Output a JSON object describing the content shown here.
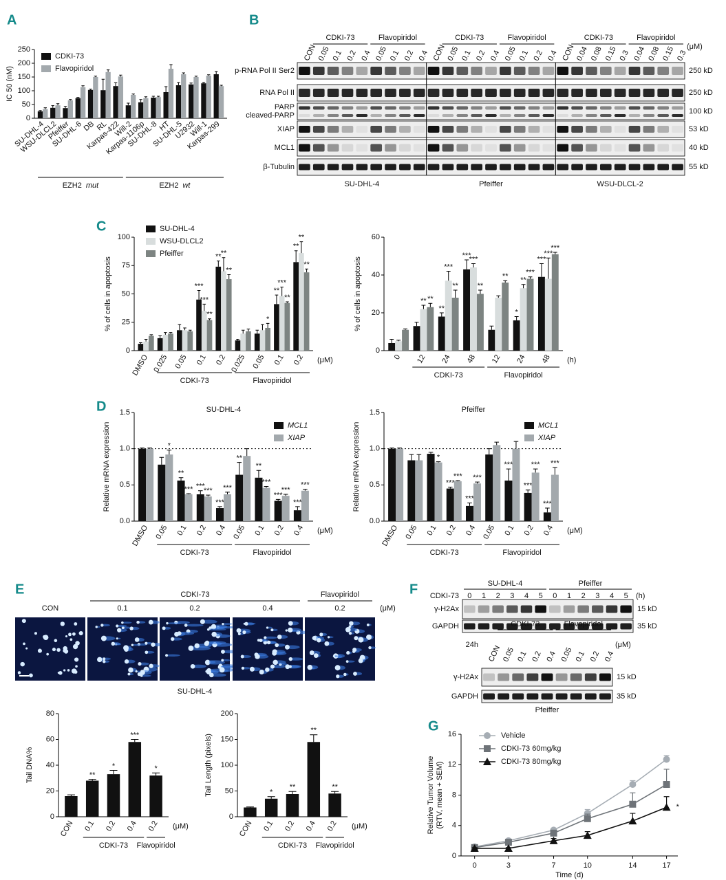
{
  "panel_labels": [
    "A",
    "B",
    "C",
    "D",
    "E",
    "F",
    "G"
  ],
  "chart_data": [
    {
      "type": "bar",
      "ylabel": "IC 50 (nM)",
      "categories": [
        "SU-DHL-4",
        "WSU-DLCL2",
        "Pfeiffer",
        "SU-DHL-6",
        "DB",
        "RL",
        "Karpas-422",
        "Will-2",
        "Karpas-1106p",
        "SU-DHL-8",
        "HT",
        "SU-DHL-5",
        "U2932",
        "Will-1",
        "Karpas-299"
      ],
      "series": [
        {
          "name": "CDKI-73",
          "color": "#111111",
          "values": [
            25,
            38,
            37,
            73,
            103,
            102,
            117,
            47,
            58,
            75,
            95,
            120,
            123,
            127,
            160
          ],
          "errors": [
            3,
            8,
            6,
            3,
            3,
            40,
            12,
            8,
            10,
            5,
            20,
            10,
            5,
            3,
            10
          ]
        },
        {
          "name": "Flavopiridol",
          "color": "#a3a9ad",
          "values": [
            33,
            47,
            65,
            113,
            150,
            168,
            152,
            85,
            73,
            77,
            180,
            160,
            150,
            155,
            117
          ],
          "errors": [
            5,
            6,
            3,
            5,
            3,
            8,
            5,
            3,
            5,
            3,
            15,
            5,
            3,
            3,
            3
          ]
        }
      ],
      "ylim": [
        0,
        250
      ],
      "yticks": [
        0,
        50,
        100,
        150,
        200,
        250
      ],
      "legend": "upper left",
      "groups": [
        {
          "label": "EZH2",
          "qualifier": "mut"
        },
        {
          "label": "EZH2",
          "qualifier": "wt"
        }
      ]
    },
    {
      "type": "bar",
      "ylabel": "% of cells in apoptosis",
      "categories": [
        "DMSO",
        "0.025",
        "0.05",
        "0.1",
        "0.2",
        "0.025",
        "0.05",
        "0.1",
        "0.2"
      ],
      "series": [
        {
          "name": "SU-DHL-4",
          "color": "#111111",
          "values": [
            6,
            11,
            18,
            45,
            74,
            9,
            15,
            41,
            78
          ],
          "errors": [
            1,
            2,
            5,
            8,
            5,
            1,
            3,
            8,
            10
          ],
          "stars": [
            null,
            null,
            null,
            "***",
            "**",
            null,
            null,
            "**",
            "**"
          ]
        },
        {
          "name": "WSU-DLCL2",
          "color": "#d8dddd",
          "values": [
            8,
            14,
            18,
            35,
            70,
            15,
            18,
            48,
            86
          ],
          "errors": [
            2,
            2,
            2,
            6,
            12,
            3,
            5,
            8,
            10
          ],
          "stars": [
            null,
            null,
            null,
            "***",
            "**",
            null,
            null,
            "***",
            "**"
          ]
        },
        {
          "name": "Pfeiffer",
          "color": "#7d8482",
          "values": [
            13,
            15,
            17,
            27,
            63,
            17,
            20,
            42,
            69
          ],
          "errors": [
            1,
            1,
            1,
            1,
            4,
            2,
            4,
            1,
            3
          ],
          "stars": [
            null,
            null,
            null,
            "**",
            "**",
            null,
            "*",
            "**",
            "**"
          ]
        }
      ],
      "ylim": [
        0,
        100
      ],
      "yticks": [
        0,
        25,
        50,
        75,
        100
      ],
      "legend": "upper left",
      "groups": [
        "CDKI-73",
        "Flavopiridol"
      ],
      "unit": "(μM)"
    },
    {
      "type": "bar",
      "ylabel": "% of cells in apoptosis",
      "categories": [
        "0",
        "12",
        "24",
        "48",
        "12",
        "24",
        "48"
      ],
      "series": [
        {
          "color": "#111111",
          "values": [
            4,
            13,
            18,
            43,
            11,
            16,
            39
          ],
          "errors": [
            2,
            2,
            2,
            5,
            2,
            2,
            7
          ],
          "stars": [
            null,
            null,
            "**",
            "***",
            null,
            "*",
            "***"
          ]
        },
        {
          "color": "#d8dddd",
          "values": [
            5,
            22,
            37,
            44,
            28,
            33,
            38
          ],
          "errors": [
            0.5,
            2,
            5,
            2,
            1,
            2,
            11
          ],
          "stars": [
            null,
            "**",
            "***",
            "***",
            null,
            "**",
            "***"
          ]
        },
        {
          "color": "#7d8482",
          "values": [
            11,
            23,
            28,
            30,
            36,
            38,
            51
          ],
          "errors": [
            0.5,
            2,
            4,
            2,
            1,
            1,
            1
          ],
          "stars": [
            null,
            "**",
            "**",
            "**",
            "**",
            "***",
            "***"
          ]
        }
      ],
      "ylim": [
        0,
        60
      ],
      "yticks": [
        0,
        20,
        40,
        60
      ],
      "groups": [
        "CDKI-73",
        "Flavopiridol"
      ],
      "unit": "(h)"
    },
    {
      "type": "bar",
      "title": "SU-DHL-4",
      "ylabel": "Relative mRNA expression",
      "categories": [
        "DMSO",
        "0.05",
        "0.1",
        "0.2",
        "0.4",
        "0.05",
        "0.1",
        "0.2",
        "0.4"
      ],
      "series": [
        {
          "name": "MCL1",
          "color": "#111111",
          "values": [
            1.0,
            0.78,
            0.56,
            0.37,
            0.18,
            0.64,
            0.6,
            0.28,
            0.15
          ],
          "errors": [
            0.01,
            0.1,
            0.04,
            0.05,
            0.02,
            0.17,
            0.1,
            0.02,
            0.05
          ],
          "stars": [
            null,
            null,
            "**",
            "***",
            "***",
            "**",
            "**",
            "***",
            "***"
          ]
        },
        {
          "name": "XIAP",
          "color": "#a3a9ad",
          "values": [
            1.0,
            0.92,
            0.37,
            0.34,
            0.37,
            0.9,
            0.46,
            0.35,
            0.42
          ],
          "errors": [
            0.01,
            0.06,
            0.01,
            0.02,
            0.03,
            0.1,
            0.02,
            0.02,
            0.02
          ],
          "stars": [
            null,
            "*",
            "***",
            "***",
            "***",
            null,
            "***",
            "***",
            "***"
          ]
        }
      ],
      "ylim": [
        0,
        1.5
      ],
      "yticks": [
        {
          "value": 0,
          "label": "0.0"
        },
        0.5,
        {
          "value": 1,
          "label": "1.0"
        },
        1.5
      ],
      "reference": 1,
      "legend": "upper right",
      "groups": [
        "CDKI-73",
        "Flavopiridol"
      ],
      "unit": "(μM)"
    },
    {
      "type": "bar",
      "title": "Pfeiffer",
      "ylabel": "Relative mRNA expression",
      "categories": [
        "DMSO",
        "0.05",
        "0.1",
        "0.2",
        "0.4",
        "0.05",
        "0.1",
        "0.2",
        "0.4"
      ],
      "series": [
        {
          "name": "MCL1",
          "color": "#111111",
          "values": [
            1.0,
            0.84,
            0.93,
            0.45,
            0.21,
            0.92,
            0.56,
            0.39,
            0.12
          ],
          "errors": [
            0.01,
            0.08,
            0.02,
            0.02,
            0.04,
            0.08,
            0.16,
            0.04,
            0.06
          ],
          "stars": [
            null,
            null,
            null,
            "***",
            "***",
            null,
            "***",
            "***",
            "***"
          ]
        },
        {
          "name": "XIAP",
          "color": "#a3a9ad",
          "values": [
            1.0,
            0.84,
            0.81,
            0.55,
            0.52,
            1.05,
            1.0,
            0.67,
            0.64
          ],
          "errors": [
            0.01,
            0.08,
            0.01,
            0.01,
            0.02,
            0.04,
            0.1,
            0.05,
            0.1
          ],
          "stars": [
            null,
            null,
            "*",
            "***",
            "***",
            null,
            null,
            "***",
            "***"
          ]
        }
      ],
      "ylim": [
        0,
        1.5
      ],
      "yticks": [
        {
          "value": 0,
          "label": "0.0"
        },
        0.5,
        {
          "value": 1,
          "label": "1.0"
        },
        1.5
      ],
      "reference": 1,
      "legend": "upper right",
      "groups": [
        "CDKI-73",
        "Flavopiridol"
      ],
      "unit": "(μM)"
    },
    {
      "type": "bar",
      "ylabel": "Tail DNA%",
      "categories": [
        "CON",
        "0.1",
        "0.2",
        "0.4",
        "0.2"
      ],
      "series": [
        {
          "color": "#111111",
          "values": [
            16,
            28,
            33,
            58,
            32
          ],
          "errors": [
            1,
            1,
            3,
            2,
            2
          ],
          "stars": [
            null,
            "**",
            "*",
            "***",
            "*"
          ]
        }
      ],
      "ylim": [
        0,
        80
      ],
      "yticks": [
        0,
        20,
        40,
        60,
        80
      ],
      "groups": [
        "CDKI-73",
        "Flavopiridol"
      ],
      "unit": "(μM)"
    },
    {
      "type": "bar",
      "ylabel": "Tail Length (pixels)",
      "categories": [
        "CON",
        "0.1",
        "0.2",
        "0.4",
        "0.2"
      ],
      "series": [
        {
          "color": "#111111",
          "values": [
            18,
            35,
            44,
            145,
            45
          ],
          "errors": [
            1,
            4,
            5,
            14,
            4
          ],
          "stars": [
            null,
            "*",
            "**",
            "**",
            "**"
          ]
        }
      ],
      "ylim": [
        0,
        200
      ],
      "yticks": [
        0,
        50,
        100,
        150,
        200
      ],
      "groups": [
        "CDKI-73",
        "Flavopiridol"
      ],
      "unit": "(μM)"
    },
    {
      "type": "line",
      "xlabel": "Time (d)",
      "ylabel": [
        "Relative Tumor Volume",
        "(RTV, mean + SEM)"
      ],
      "x": [
        0,
        3,
        7,
        10,
        14,
        17
      ],
      "xlim": [
        -1.2,
        18
      ],
      "xticks": [
        0,
        3,
        7,
        10,
        14,
        17
      ],
      "ylim": [
        0,
        16
      ],
      "yticks": [
        0,
        4,
        8,
        12,
        16
      ],
      "legend": "upper left",
      "series": [
        {
          "name": "Vehicle",
          "color": "#a6adb4",
          "marker": "circle",
          "values": [
            1.2,
            2.0,
            3.4,
            5.6,
            9.4,
            12.7
          ],
          "errors": [
            0.1,
            0.2,
            0.2,
            0.5,
            0.5,
            0.5
          ]
        },
        {
          "name": "CDKI-73 60mg/kg",
          "color": "#6e7378",
          "marker": "square",
          "values": [
            1.1,
            1.8,
            3.0,
            4.9,
            6.8,
            9.4
          ],
          "errors": [
            0.1,
            0.2,
            0.3,
            0.6,
            1.5,
            2.0
          ]
        },
        {
          "name": "CDKI-73 80mg/kg",
          "color": "#111111",
          "marker": "triangle",
          "values": [
            1.0,
            1.0,
            2.0,
            2.7,
            4.6,
            6.4
          ],
          "errors": [
            0.1,
            0.1,
            0.3,
            0.5,
            1.0,
            1.4
          ]
        }
      ],
      "annotation": "*"
    }
  ],
  "panel_B": {
    "unit": "(μM)",
    "sections": [
      {
        "cell_line": "SU-DHL-4",
        "lanes": [
          "CON",
          "0.05",
          "0.1",
          "0.2",
          "0.4",
          "0.05",
          "0.1",
          "0.2",
          "0.4"
        ],
        "drugs": [
          "CDKI-73",
          "Flavopiridol"
        ]
      },
      {
        "cell_line": "Pfeiffer",
        "lanes": [
          "CON",
          "0.05",
          "0.1",
          "0.2",
          "0.4",
          "0.05",
          "0.1",
          "0.2",
          "0.4"
        ],
        "drugs": [
          "CDKI-73",
          "Flavopiridol"
        ]
      },
      {
        "cell_line": "WSU-DLCL-2",
        "lanes": [
          "CON",
          "0.04",
          "0.08",
          "0.15",
          "0.3",
          "0.04",
          "0.08",
          "0.15",
          "0.3"
        ],
        "drugs": [
          "CDKI-73",
          "Flavopiridol"
        ]
      }
    ],
    "rows": [
      {
        "labels": [
          "p-RNA Pol II Ser2"
        ],
        "size": "250 kD"
      },
      {
        "labels": [
          "RNA Pol II"
        ],
        "size": "250 kD"
      },
      {
        "labels": [
          "PARP",
          "cleaved-PARP"
        ],
        "size": "100 kD"
      },
      {
        "labels": [
          "XIAP"
        ],
        "size": "53 kD"
      },
      {
        "labels": [
          "MCL1"
        ],
        "size": "40 kD"
      },
      {
        "labels": [
          "β-Tubulin"
        ],
        "size": "55 kD"
      }
    ]
  },
  "panel_E": {
    "images": [
      "CON",
      "0.1",
      "0.2",
      "0.4",
      "0.2"
    ],
    "drugs": [
      "CDKI-73",
      "Flavopiridol"
    ],
    "unit": "(μM)",
    "cell_line": "SU-DHL-4"
  },
  "panel_F": {
    "top": {
      "drug": "CDKI-73",
      "unit": "(h)",
      "sections": [
        {
          "cell_line": "SU-DHL-4",
          "times": [
            "0",
            "1",
            "2",
            "3",
            "4",
            "5"
          ]
        },
        {
          "cell_line": "Pfeiffer",
          "times": [
            "0",
            "1",
            "2",
            "3",
            "4",
            "5"
          ]
        }
      ],
      "rows": [
        {
          "label": "γ-H2Ax",
          "size": "15 kD"
        },
        {
          "label": "GAPDH",
          "size": "35 kD"
        }
      ]
    },
    "bottom": {
      "time": "24h",
      "lanes": [
        "CON",
        "0.05",
        "0.1",
        "0.2",
        "0.4",
        "0.05",
        "0.1",
        "0.2",
        "0.4"
      ],
      "drugs": [
        "CDKI-73",
        "Flavopiridol"
      ],
      "unit": "(μM)",
      "rows": [
        {
          "label": "γ-H2Ax",
          "size": "15 kD"
        },
        {
          "label": "GAPDH",
          "size": "35 kD"
        }
      ],
      "cell_line": "Pfeiffer"
    }
  }
}
